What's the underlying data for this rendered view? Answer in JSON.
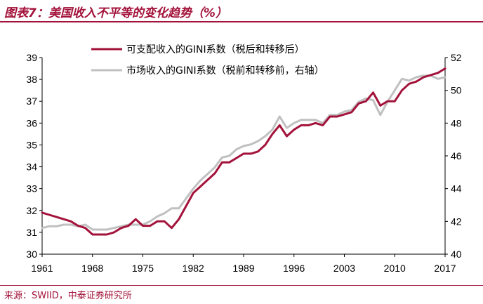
{
  "header": {
    "title": "图表7：美国收入不平等的变化趋势（%）"
  },
  "footer": {
    "source": "来源：SWIID，中泰证券研究所"
  },
  "colors": {
    "accent": "#a3123a",
    "series_primary": "#a3123a",
    "series_secondary": "#c0c0c0"
  },
  "chart_data": {
    "type": "line",
    "title": "图表7：美国收入不平等的变化趋势（%）",
    "x_ticks": [
      1961,
      1968,
      1975,
      1982,
      1989,
      1996,
      2003,
      2010,
      2017
    ],
    "xlim": [
      1961,
      2017
    ],
    "ylim_left": [
      30,
      39
    ],
    "yticks_left": [
      30,
      31,
      32,
      33,
      34,
      35,
      36,
      37,
      38,
      39
    ],
    "ylim_right": [
      40,
      52
    ],
    "yticks_right": [
      40,
      42,
      44,
      46,
      48,
      50,
      52
    ],
    "legend_position": "top",
    "grid": false,
    "series": [
      {
        "name": "可支配收入的GINI系数（税后和转移后）",
        "axis": "left",
        "color": "#a3123a",
        "x": [
          1961,
          1962,
          1963,
          1964,
          1965,
          1966,
          1967,
          1968,
          1969,
          1970,
          1971,
          1972,
          1973,
          1974,
          1975,
          1976,
          1977,
          1978,
          1979,
          1980,
          1981,
          1982,
          1983,
          1984,
          1985,
          1986,
          1987,
          1988,
          1989,
          1990,
          1991,
          1992,
          1993,
          1994,
          1995,
          1996,
          1997,
          1998,
          1999,
          2000,
          2001,
          2002,
          2003,
          2004,
          2005,
          2006,
          2007,
          2008,
          2009,
          2010,
          2011,
          2012,
          2013,
          2014,
          2015,
          2016,
          2017
        ],
        "values": [
          31.9,
          31.8,
          31.7,
          31.6,
          31.5,
          31.3,
          31.2,
          30.9,
          30.9,
          30.9,
          31.0,
          31.2,
          31.3,
          31.6,
          31.3,
          31.3,
          31.5,
          31.5,
          31.2,
          31.6,
          32.2,
          32.8,
          33.1,
          33.4,
          33.7,
          34.2,
          34.2,
          34.4,
          34.6,
          34.6,
          34.7,
          35.0,
          35.5,
          35.9,
          35.4,
          35.7,
          35.9,
          35.9,
          36.0,
          35.9,
          36.3,
          36.3,
          36.4,
          36.5,
          36.9,
          37.0,
          37.4,
          36.8,
          37.0,
          37.0,
          37.5,
          37.8,
          37.9,
          38.1,
          38.2,
          38.3,
          38.5
        ]
      },
      {
        "name": "市场收入的GINI系数（税前和转移前，右轴）",
        "axis": "right",
        "color": "#c0c0c0",
        "x": [
          1961,
          1962,
          1963,
          1964,
          1965,
          1966,
          1967,
          1968,
          1969,
          1970,
          1971,
          1972,
          1973,
          1974,
          1975,
          1976,
          1977,
          1978,
          1979,
          1980,
          1981,
          1982,
          1983,
          1984,
          1985,
          1986,
          1987,
          1988,
          1989,
          1990,
          1991,
          1992,
          1993,
          1994,
          1995,
          1996,
          1997,
          1998,
          1999,
          2000,
          2001,
          2002,
          2003,
          2004,
          2005,
          2006,
          2007,
          2008,
          2009,
          2010,
          2011,
          2012,
          2013,
          2014,
          2015,
          2016,
          2017
        ],
        "values": [
          41.6,
          41.7,
          41.7,
          41.8,
          41.8,
          41.7,
          41.8,
          41.5,
          41.5,
          41.5,
          41.6,
          41.7,
          41.8,
          41.8,
          41.8,
          42.0,
          42.3,
          42.5,
          42.8,
          42.8,
          43.4,
          44.0,
          44.5,
          44.9,
          45.3,
          45.9,
          46.0,
          46.4,
          46.6,
          46.7,
          46.9,
          47.2,
          47.6,
          48.4,
          47.7,
          48.0,
          48.2,
          48.2,
          48.2,
          48.0,
          48.5,
          48.5,
          48.7,
          48.8,
          49.3,
          49.5,
          49.4,
          48.5,
          49.3,
          50.0,
          50.7,
          50.6,
          50.8,
          50.9,
          50.9,
          50.7,
          50.8
        ]
      }
    ]
  }
}
